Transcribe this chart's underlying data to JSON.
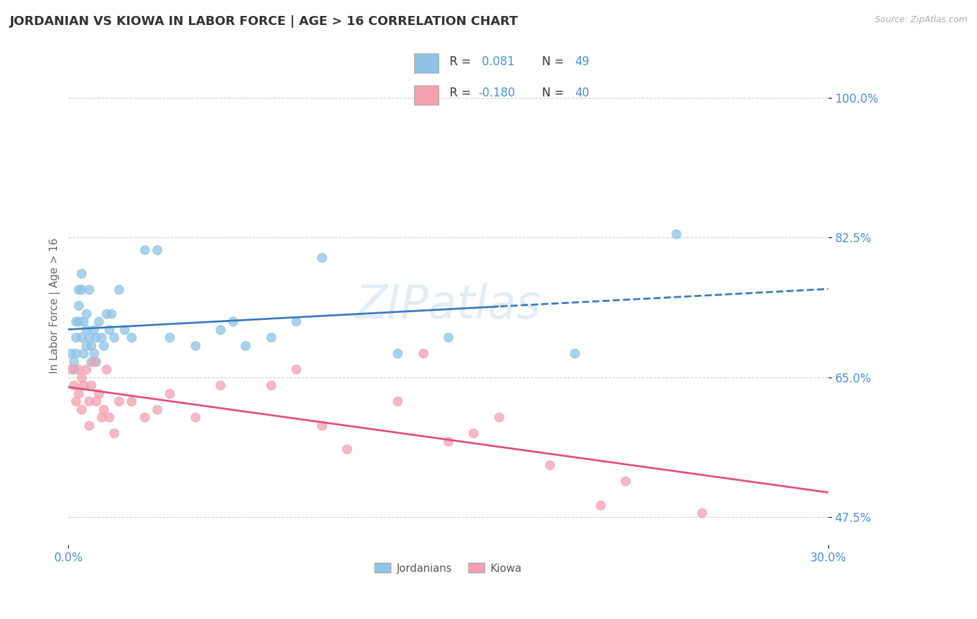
{
  "title": "JORDANIAN VS KIOWA IN LABOR FORCE | AGE > 16 CORRELATION CHART",
  "source": "Source: ZipAtlas.com",
  "ylabel": "In Labor Force | Age > 16",
  "xlim": [
    0.0,
    0.3
  ],
  "ylim": [
    0.44,
    1.04
  ],
  "ytick_vals": [
    0.475,
    0.65,
    0.825,
    1.0
  ],
  "ytick_labels": [
    "47.5%",
    "65.0%",
    "82.5%",
    "100.0%"
  ],
  "xtick_vals": [
    0.0,
    0.3
  ],
  "xtick_labels": [
    "0.0%",
    "30.0%"
  ],
  "background_color": "#ffffff",
  "grid_color": "#cccccc",
  "blue_dot_color": "#8ec3e6",
  "pink_dot_color": "#f4a0b0",
  "blue_line_color": "#3a7abf",
  "pink_line_color": "#e0507a",
  "tick_color": "#4a90d9",
  "legend_R_blue": "0.081",
  "legend_N_blue": "49",
  "legend_R_pink": "-0.180",
  "legend_N_pink": "40",
  "watermark": "ZIPatlas",
  "jordanian_x": [
    0.001,
    0.002,
    0.002,
    0.003,
    0.003,
    0.003,
    0.004,
    0.004,
    0.004,
    0.005,
    0.005,
    0.005,
    0.006,
    0.006,
    0.007,
    0.007,
    0.007,
    0.008,
    0.008,
    0.009,
    0.009,
    0.01,
    0.01,
    0.011,
    0.011,
    0.012,
    0.013,
    0.014,
    0.015,
    0.016,
    0.017,
    0.018,
    0.02,
    0.022,
    0.025,
    0.03,
    0.035,
    0.04,
    0.05,
    0.06,
    0.065,
    0.07,
    0.08,
    0.09,
    0.1,
    0.13,
    0.15,
    0.2,
    0.24
  ],
  "jordanian_y": [
    0.68,
    0.67,
    0.66,
    0.72,
    0.7,
    0.68,
    0.76,
    0.74,
    0.72,
    0.78,
    0.76,
    0.7,
    0.72,
    0.68,
    0.73,
    0.71,
    0.69,
    0.76,
    0.7,
    0.69,
    0.67,
    0.71,
    0.68,
    0.7,
    0.67,
    0.72,
    0.7,
    0.69,
    0.73,
    0.71,
    0.73,
    0.7,
    0.76,
    0.71,
    0.7,
    0.81,
    0.81,
    0.7,
    0.69,
    0.71,
    0.72,
    0.69,
    0.7,
    0.72,
    0.8,
    0.68,
    0.7,
    0.68,
    0.83
  ],
  "kiowa_x": [
    0.001,
    0.002,
    0.003,
    0.004,
    0.004,
    0.005,
    0.005,
    0.006,
    0.007,
    0.008,
    0.008,
    0.009,
    0.01,
    0.011,
    0.012,
    0.013,
    0.014,
    0.015,
    0.016,
    0.018,
    0.02,
    0.025,
    0.03,
    0.035,
    0.04,
    0.05,
    0.06,
    0.08,
    0.09,
    0.1,
    0.11,
    0.13,
    0.15,
    0.16,
    0.17,
    0.19,
    0.21,
    0.22,
    0.25,
    0.14
  ],
  "kiowa_y": [
    0.66,
    0.64,
    0.62,
    0.66,
    0.63,
    0.65,
    0.61,
    0.64,
    0.66,
    0.62,
    0.59,
    0.64,
    0.67,
    0.62,
    0.63,
    0.6,
    0.61,
    0.66,
    0.6,
    0.58,
    0.62,
    0.62,
    0.6,
    0.61,
    0.63,
    0.6,
    0.64,
    0.64,
    0.66,
    0.59,
    0.56,
    0.62,
    0.57,
    0.58,
    0.6,
    0.54,
    0.49,
    0.52,
    0.48,
    0.68
  ]
}
